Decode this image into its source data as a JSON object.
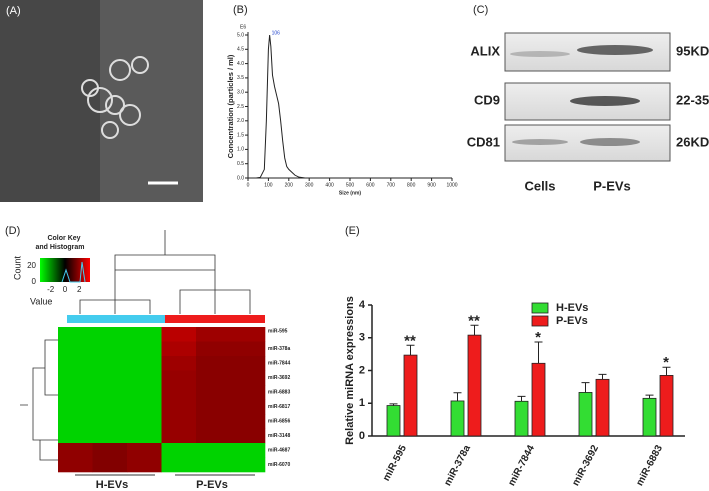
{
  "panel_labels": [
    "(A)",
    "(B)",
    "(C)",
    "(D)",
    "(E)"
  ],
  "chart_data": [
    {
      "type": "line",
      "unit_label": "E6",
      "peak_label": "106",
      "xlabel": "Size (nm)",
      "ylabel": "Concentration (particles / ml)",
      "x": [
        40,
        60,
        80,
        90,
        100,
        106,
        112,
        120,
        130,
        140,
        150,
        160,
        170,
        180,
        190,
        200,
        215,
        230,
        250,
        280
      ],
      "series": [
        {
          "color": "#222222",
          "values": [
            0,
            0.02,
            0.3,
            2.0,
            4.5,
            5.0,
            4.6,
            3.6,
            3.2,
            2.9,
            2.6,
            2.0,
            1.3,
            0.7,
            0.4,
            0.3,
            0.2,
            0.1,
            0.03,
            0
          ]
        }
      ],
      "xlim": [
        0,
        1000
      ],
      "xticks": [
        0,
        100,
        200,
        300,
        400,
        500,
        600,
        700,
        800,
        900,
        1000
      ],
      "ylim": [
        0,
        5
      ],
      "yticks": [
        {
          "value": 0,
          "label": "0.0"
        },
        {
          "value": 0.5,
          "label": "0.5"
        },
        {
          "value": 1,
          "label": "1.0"
        },
        {
          "value": 1.5,
          "label": "1.5"
        },
        {
          "value": 2,
          "label": "2.0"
        },
        {
          "value": 2.5,
          "label": "2.5"
        },
        {
          "value": 3,
          "label": "3.0"
        },
        {
          "value": 3.5,
          "label": "3.5"
        },
        {
          "value": 4,
          "label": "4.0"
        },
        {
          "value": 4.5,
          "label": "4.5"
        },
        {
          "value": 5,
          "label": "5.0"
        }
      ]
    },
    {
      "type": "bar",
      "ylabel": "Relative miRNA expressions",
      "categories": [
        "miR-595",
        "miR-378a",
        "miR-7844",
        "miR-3692",
        "miR-6883"
      ],
      "series": [
        {
          "name": "H-EVs",
          "color": "#33dd33",
          "values": [
            0.93,
            1.07,
            1.06,
            1.33,
            1.15
          ],
          "errors": [
            0.05,
            0.25,
            0.15,
            0.3,
            0.1
          ]
        },
        {
          "name": "P-EVs",
          "color": "#ee1c1c",
          "values": [
            2.47,
            3.08,
            2.22,
            1.73,
            1.85
          ],
          "errors": [
            0.3,
            0.3,
            0.65,
            0.15,
            0.25
          ]
        }
      ],
      "significance": [
        "**",
        "**",
        "*",
        null,
        "*"
      ],
      "ylim": [
        0,
        4
      ],
      "yticks": [
        0,
        1,
        2,
        3,
        4
      ]
    }
  ],
  "blot": {
    "rows": [
      {
        "protein": "ALIX",
        "size": "95KD"
      },
      {
        "protein": "CD9",
        "size": "22-35KD"
      },
      {
        "protein": "CD81",
        "size": "26KD"
      }
    ],
    "lanes": [
      "Cells",
      "P-EVs"
    ]
  },
  "heatmap": {
    "key_title": "Color Key and Histogram",
    "key_ylabel": "Count",
    "key_yticks": [
      0,
      20
    ],
    "key_xlabel": "Value",
    "key_xticks": [
      -2,
      0,
      2
    ],
    "genes": [
      "miR-595",
      "miR-378a",
      "miR-7844",
      "miR-3692",
      "miR-6883",
      "miR-6817",
      "miR-6856",
      "miR-3148",
      "miR-4687",
      "miR-6070"
    ],
    "groups": [
      "H-EVs",
      "P-EVs"
    ],
    "values": [
      [
        -1.5,
        -1.5,
        -1.5,
        1.8,
        1.4,
        1.4
      ],
      [
        -1.5,
        -1.5,
        -1.5,
        1.6,
        1.2,
        1.2
      ],
      [
        -1.5,
        -1.5,
        -1.5,
        1.4,
        1.1,
        1.1
      ],
      [
        -1.5,
        -1.5,
        -1.5,
        1.3,
        1.1,
        1.1
      ],
      [
        -1.5,
        -1.5,
        -1.5,
        1.3,
        1.1,
        1.1
      ],
      [
        -1.5,
        -1.5,
        -1.5,
        1.3,
        1.1,
        1.1
      ],
      [
        -1.5,
        -1.5,
        -1.5,
        1.3,
        1.1,
        1.1
      ],
      [
        -1.5,
        -1.5,
        -1.5,
        1.3,
        1.1,
        1.1
      ],
      [
        1.2,
        1.0,
        1.2,
        -1.5,
        -1.5,
        -1.5
      ],
      [
        1.2,
        1.0,
        1.2,
        -1.5,
        -1.5,
        -1.5
      ]
    ]
  }
}
